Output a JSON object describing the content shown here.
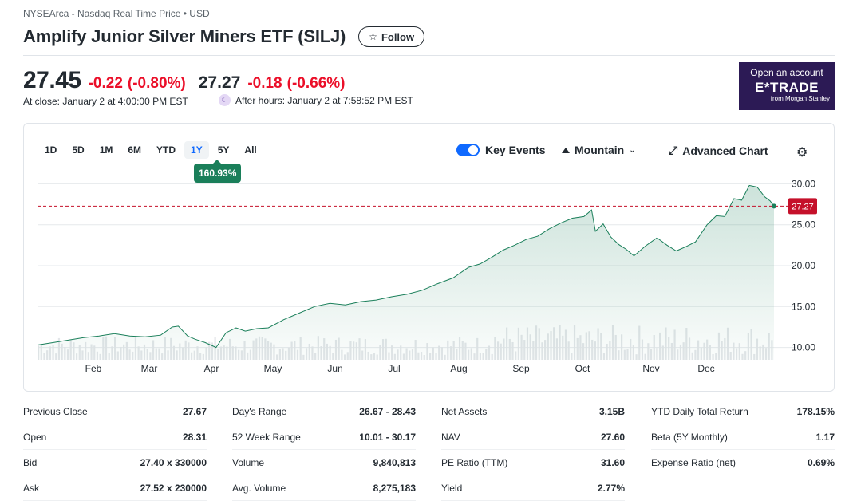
{
  "header": {
    "exchange": "NYSEArca - Nasdaq Real Time Price • USD",
    "title": "Amplify Junior Silver Miners ETF (SILJ)",
    "follow_label": "Follow"
  },
  "quote": {
    "price": "27.45",
    "change": "-0.22",
    "change_pct": "(-0.80%)",
    "close_time": "At close: January 2 at 4:00:00 PM EST",
    "ah_price": "27.27",
    "ah_change": "-0.18",
    "ah_change_pct": "(-0.66%)",
    "ah_time": "After hours: January 2 at 7:58:52 PM EST"
  },
  "ad": {
    "line1": "Open an account",
    "line2": "E*TRADE",
    "line3": "from Morgan Stanley"
  },
  "chart_controls": {
    "ranges": [
      "1D",
      "5D",
      "1M",
      "6M",
      "YTD",
      "1Y",
      "5Y",
      "All"
    ],
    "active_range": "1Y",
    "range_return": "160.93%",
    "key_events_label": "Key Events",
    "chart_type_label": "Mountain",
    "advanced_label": "Advanced Chart"
  },
  "chart_data": {
    "type": "area",
    "x_ticks": [
      "Feb",
      "Mar",
      "Apr",
      "May",
      "Jun",
      "Jul",
      "Aug",
      "Sep",
      "Oct",
      "Nov",
      "Dec"
    ],
    "y_ticks": [
      "30.00",
      "25.00",
      "20.00",
      "15.00",
      "10.00"
    ],
    "ylim": [
      8.5,
      31.5
    ],
    "reference_line": 27.27,
    "reference_label": "27.27",
    "colors": {
      "line": "#1a7f5a",
      "ref": "#c5102a"
    },
    "series": [
      {
        "x": [
          0,
          20,
          40,
          60,
          80,
          100,
          120,
          140,
          160,
          175,
          183,
          195,
          205,
          218,
          232,
          245,
          258,
          270,
          285,
          300,
          320,
          340,
          360,
          380,
          400,
          420,
          440,
          460,
          480,
          500,
          520,
          540,
          560,
          575,
          590,
          605,
          620,
          635,
          650,
          665,
          680,
          695,
          710,
          720,
          725,
          735,
          745,
          755,
          765,
          775,
          790,
          805,
          818,
          830,
          842,
          855,
          870,
          882,
          893,
          905,
          915,
          925,
          935,
          945,
          952,
          957
        ],
        "values": [
          10.3,
          10.6,
          10.9,
          11.2,
          11.4,
          11.7,
          11.4,
          11.3,
          11.5,
          12.5,
          12.6,
          11.4,
          11.0,
          10.6,
          10.0,
          11.8,
          12.4,
          12.0,
          12.3,
          12.4,
          13.4,
          14.2,
          15.0,
          15.4,
          15.2,
          15.6,
          15.8,
          16.2,
          16.5,
          17.0,
          17.8,
          18.5,
          19.8,
          20.2,
          21.0,
          21.9,
          22.5,
          23.2,
          23.6,
          24.5,
          25.2,
          25.8,
          26.0,
          26.8,
          24.2,
          25.1,
          23.5,
          22.6,
          22.0,
          21.2,
          22.4,
          23.4,
          22.5,
          21.8,
          22.3,
          22.9,
          25.0,
          26.1,
          26.0,
          28.2,
          28.0,
          29.8,
          29.6,
          28.4,
          27.9,
          27.27
        ]
      }
    ],
    "volume_ticks": 100
  },
  "stats": {
    "col1": [
      {
        "label": "Previous Close",
        "value": "27.67"
      },
      {
        "label": "Open",
        "value": "28.31"
      },
      {
        "label": "Bid",
        "value": "27.40 x 330000"
      },
      {
        "label": "Ask",
        "value": "27.52 x 230000"
      }
    ],
    "col2": [
      {
        "label": "Day's Range",
        "value": "26.67 - 28.43"
      },
      {
        "label": "52 Week Range",
        "value": "10.01 - 30.17"
      },
      {
        "label": "Volume",
        "value": "9,840,813"
      },
      {
        "label": "Avg. Volume",
        "value": "8,275,183"
      }
    ],
    "col3": [
      {
        "label": "Net Assets",
        "value": "3.15B"
      },
      {
        "label": "NAV",
        "value": "27.60"
      },
      {
        "label": "PE Ratio (TTM)",
        "value": "31.60"
      },
      {
        "label": "Yield",
        "value": "2.77%"
      }
    ],
    "col4": [
      {
        "label": "YTD Daily Total Return",
        "value": "178.15%"
      },
      {
        "label": "Beta (5Y Monthly)",
        "value": "1.17"
      },
      {
        "label": "Expense Ratio (net)",
        "value": "0.69%"
      }
    ]
  }
}
